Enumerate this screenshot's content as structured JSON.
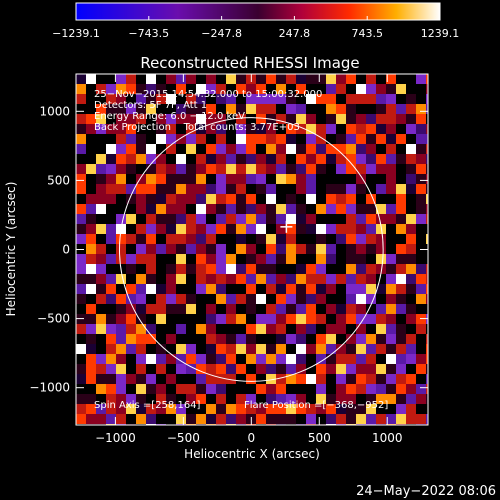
{
  "chart_data": {
    "type": "heatmap",
    "title": "Reconstructed RHESSI Image",
    "xlabel": "Heliocentric X (arcsec)",
    "ylabel": "Heliocentric Y (arcsec)",
    "xlim": [
      -1290,
      1300
    ],
    "ylim": [
      -1270,
      1270
    ],
    "xticks": [
      -1000,
      -500,
      0,
      500,
      1000
    ],
    "xtick_labels": [
      "−1000",
      "−500",
      "0",
      "500",
      "1000"
    ],
    "yticks": [
      -1000,
      -500,
      0,
      500,
      1000
    ],
    "ytick_labels": [
      "−1000",
      "−500",
      "0",
      "500",
      "1000"
    ],
    "colorbar": {
      "min": -1239.1,
      "max": 1239.1,
      "ticks": [
        -1239.1,
        -743.5,
        -247.8,
        247.8,
        743.5,
        1239.1
      ],
      "tick_labels": [
        "−1239.1",
        "−743.5",
        "−247.8",
        "247.8",
        "743.5",
        "1239.1"
      ],
      "colors": [
        "#0000ff",
        "#8a2be2",
        "#6a0dad",
        "#b0003a",
        "#ff2a00",
        "#ffae00",
        "#ffffff"
      ]
    },
    "solar_limb_radius": 970,
    "flare_marker": [
      258,
      164
    ],
    "annotations": {
      "line1": "25−Nov−2015 14:54:32.000 to 15:00:32.000",
      "line2": "Detectors: 5F 7F, Att 1",
      "line3": "Energy Range: 6.0 − 12.0 keV",
      "line4": "Back Projection    Total counts: 3.77E+03",
      "bottom_left": "Spin Axis =[258,164]",
      "bottom_right": "Flare Position =[−368,−952]"
    }
  },
  "footer": {
    "date": "24−May−2022 08:06"
  }
}
